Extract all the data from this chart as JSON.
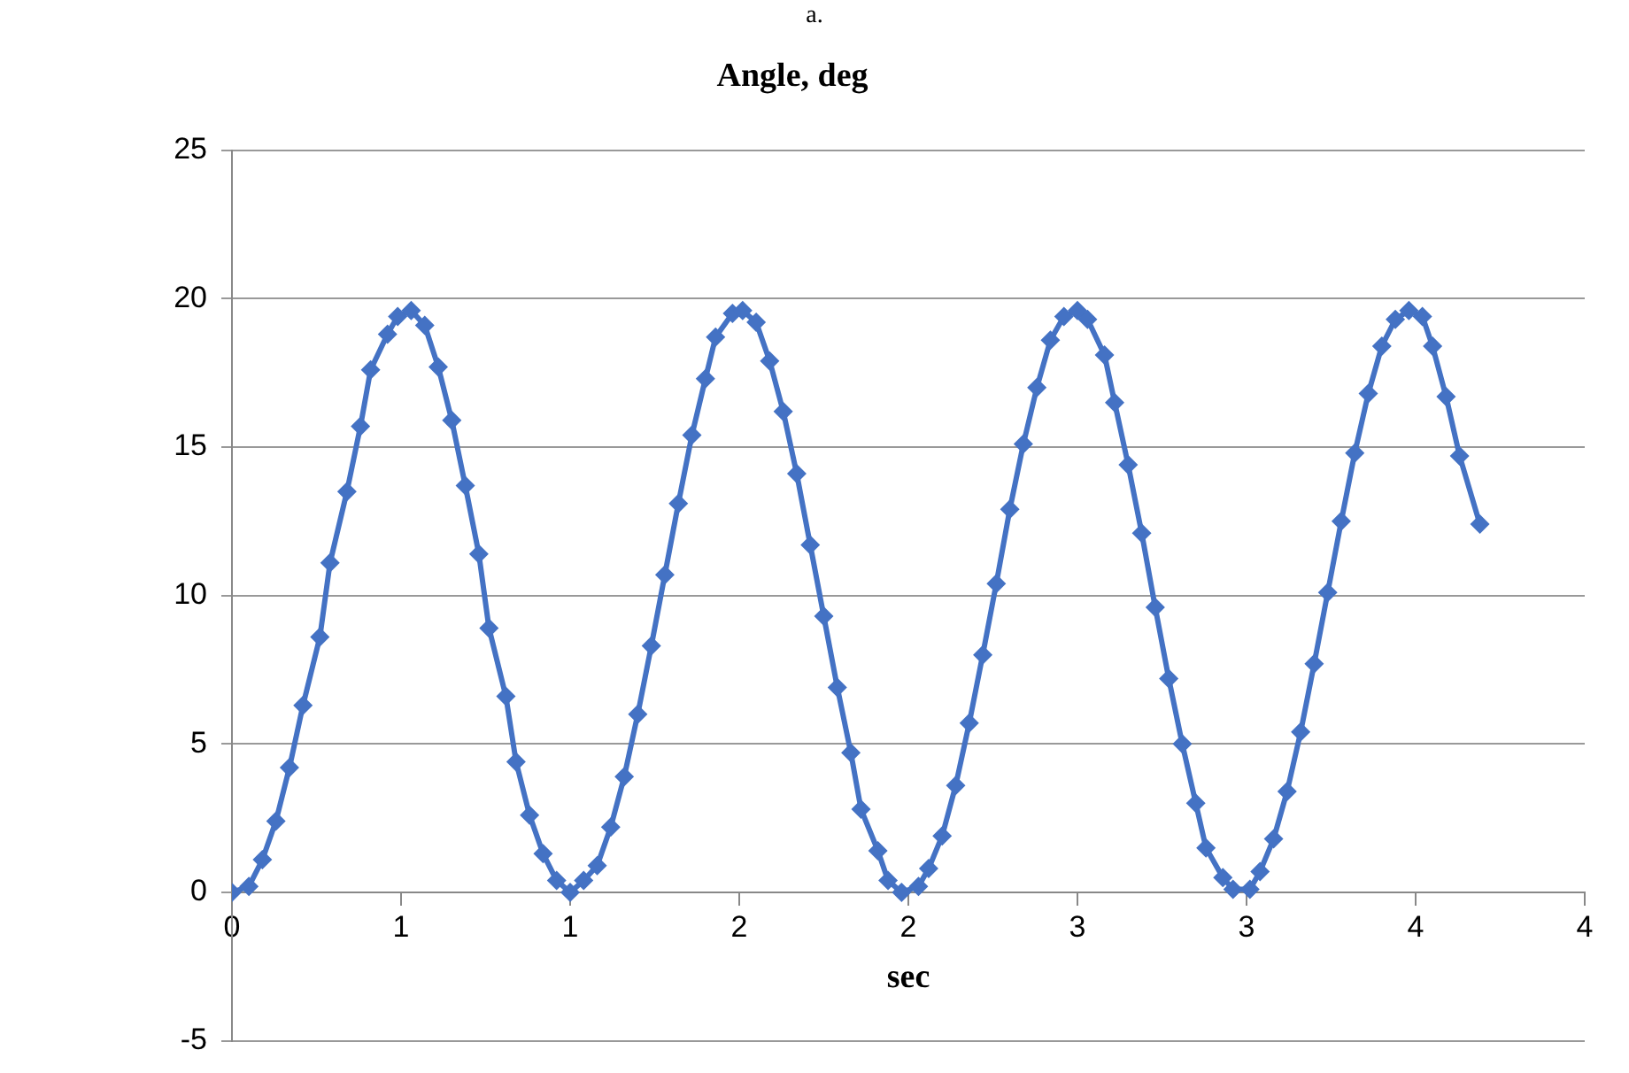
{
  "chart_data": {
    "type": "line",
    "title": "Angle, deg",
    "xlabel": "sec",
    "annotations": [
      "a."
    ],
    "x": [
      0,
      0.05,
      0.09,
      0.13,
      0.17,
      0.21,
      0.26,
      0.29,
      0.34,
      0.38,
      0.41,
      0.46,
      0.49,
      0.53,
      0.57,
      0.61,
      0.65,
      0.69,
      0.73,
      0.76,
      0.81,
      0.84,
      0.88,
      0.92,
      0.96,
      1.0,
      1.04,
      1.08,
      1.12,
      1.16,
      1.2,
      1.24,
      1.28,
      1.32,
      1.36,
      1.4,
      1.43,
      1.48,
      1.51,
      1.55,
      1.59,
      1.63,
      1.67,
      1.71,
      1.75,
      1.79,
      1.83,
      1.86,
      1.91,
      1.94,
      1.98,
      2.03,
      2.06,
      2.1,
      2.14,
      2.18,
      2.22,
      2.26,
      2.3,
      2.34,
      2.38,
      2.42,
      2.46,
      2.5,
      2.53,
      2.58,
      2.61,
      2.65,
      2.69,
      2.73,
      2.77,
      2.81,
      2.85,
      2.88,
      2.93,
      2.96,
      3.01,
      3.04,
      3.08,
      3.12,
      3.16,
      3.2,
      3.24,
      3.28,
      3.32,
      3.36,
      3.4,
      3.44,
      3.48,
      3.52,
      3.55,
      3.59,
      3.63,
      3.69
    ],
    "series": [
      {
        "color": "#4472c4",
        "values": [
          0,
          0.2,
          1.1,
          2.4,
          4.2,
          6.3,
          8.6,
          11.1,
          13.5,
          15.7,
          17.6,
          18.8,
          19.4,
          19.6,
          19.1,
          17.7,
          15.9,
          13.7,
          11.4,
          8.9,
          6.6,
          4.4,
          2.6,
          1.3,
          0.4,
          0,
          0.4,
          0.9,
          2.2,
          3.9,
          6.0,
          8.3,
          10.7,
          13.1,
          15.4,
          17.3,
          18.7,
          19.5,
          19.6,
          19.2,
          17.9,
          16.2,
          14.1,
          11.7,
          9.3,
          6.9,
          4.7,
          2.8,
          1.4,
          0.4,
          0,
          0.2,
          0.8,
          1.9,
          3.6,
          5.7,
          8.0,
          10.4,
          12.9,
          15.1,
          17.0,
          18.6,
          19.4,
          19.6,
          19.3,
          18.1,
          16.5,
          14.4,
          12.1,
          9.6,
          7.2,
          5.0,
          3.0,
          1.5,
          0.5,
          0.1,
          0.1,
          0.7,
          1.8,
          3.4,
          5.4,
          7.7,
          10.1,
          12.5,
          14.8,
          16.8,
          18.4,
          19.3,
          19.6,
          19.4,
          18.4,
          16.7,
          14.7,
          12.4
        ]
      }
    ],
    "xlim": [
      0,
      4
    ],
    "xticks": [
      0,
      {
        "value": 0.5,
        "label": "1"
      },
      1,
      {
        "value": 1.5,
        "label": "2"
      },
      2,
      {
        "value": 2.5,
        "label": "3"
      },
      3,
      {
        "value": 3.5,
        "label": "4"
      },
      4
    ],
    "ylim": [
      -5,
      25
    ],
    "yticks": [
      -5,
      0,
      5,
      10,
      15,
      20,
      25
    ],
    "grid": "y",
    "legend": false,
    "marker": "diamond",
    "line_style": "solid"
  }
}
